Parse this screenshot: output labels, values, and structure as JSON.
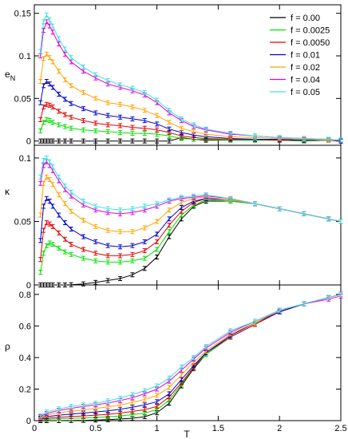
{
  "colors": {
    "f = 0.00": "#000000",
    "f = 0.0025": "#00e000",
    "f = 0.0050": "#e00000",
    "f = 0.01": "#0000d0",
    "f = 0.02": "#ffa500",
    "f = 0.04": "#e000e0",
    "f = 0.05": "#40e0e0"
  },
  "legend": [
    "f = 0.00",
    "f = 0.0025",
    "f = 0.0050",
    "f = 0.01",
    "f = 0.02",
    "f = 0.04",
    "f = 0.05"
  ],
  "chart_data": [
    {
      "type": "line",
      "ylabel": "e_N",
      "xlim": [
        0,
        2.5
      ],
      "ylim": [
        -0.005,
        0.16
      ],
      "yticks": [
        0,
        0.05,
        0.1,
        0.15
      ],
      "ytick_labels": [
        "0",
        "0.05",
        "0.1",
        "0.15"
      ],
      "legend_position": "top-right",
      "x": [
        0.05,
        0.075,
        0.1,
        0.125,
        0.15,
        0.2,
        0.25,
        0.3,
        0.4,
        0.5,
        0.6,
        0.7,
        0.8,
        0.9,
        1.0,
        1.1,
        1.2,
        1.3,
        1.4,
        1.6,
        1.8,
        2.0,
        2.2,
        2.4,
        2.5
      ],
      "series": [
        {
          "name": "f = 0.00",
          "values": [
            0,
            0,
            0,
            0,
            0,
            0,
            0,
            0,
            0,
            0,
            0,
            0,
            0,
            0,
            0,
            0,
            0.004,
            0.002,
            0.001,
            0.001,
            0.001,
            0.001,
            0,
            0.001,
            0
          ]
        },
        {
          "name": "f = 0.0025",
          "values": [
            0.012,
            0.022,
            0.025,
            0.024,
            0.022,
            0.019,
            0.017,
            0.015,
            0.013,
            0.012,
            0.011,
            0.01,
            0.009,
            0.009,
            0.008,
            0.006,
            0.003,
            0.002,
            0.002,
            0.001,
            0.001,
            0.001,
            0,
            0.001,
            0
          ]
        },
        {
          "name": "f = 0.0050",
          "values": [
            0.025,
            0.04,
            0.043,
            0.042,
            0.04,
            0.035,
            0.031,
            0.028,
            0.024,
            0.021,
            0.019,
            0.018,
            0.016,
            0.015,
            0.013,
            0.01,
            0.006,
            0.004,
            0.003,
            0.002,
            0.002,
            0.001,
            0.001,
            0.001,
            0
          ]
        },
        {
          "name": "f = 0.01",
          "values": [
            0.045,
            0.065,
            0.07,
            0.067,
            0.063,
            0.055,
            0.049,
            0.044,
            0.038,
            0.033,
            0.03,
            0.028,
            0.026,
            0.024,
            0.02,
            0.014,
            0.01,
            0.007,
            0.005,
            0.003,
            0.002,
            0.002,
            0.001,
            0.001,
            0
          ]
        },
        {
          "name": "f = 0.02",
          "values": [
            0.07,
            0.097,
            0.102,
            0.098,
            0.093,
            0.082,
            0.072,
            0.065,
            0.057,
            0.05,
            0.045,
            0.043,
            0.04,
            0.036,
            0.03,
            0.022,
            0.015,
            0.011,
            0.008,
            0.005,
            0.004,
            0.003,
            0.002,
            0.001,
            0.001
          ]
        },
        {
          "name": "f = 0.04",
          "values": [
            0.1,
            0.13,
            0.14,
            0.135,
            0.128,
            0.114,
            0.102,
            0.093,
            0.082,
            0.074,
            0.067,
            0.063,
            0.059,
            0.054,
            0.045,
            0.033,
            0.024,
            0.017,
            0.013,
            0.008,
            0.006,
            0.004,
            0.003,
            0.002,
            0.001
          ]
        },
        {
          "name": "f = 0.05",
          "values": [
            0.105,
            0.14,
            0.148,
            0.142,
            0.135,
            0.12,
            0.108,
            0.098,
            0.087,
            0.078,
            0.071,
            0.066,
            0.062,
            0.057,
            0.048,
            0.036,
            0.026,
            0.019,
            0.014,
            0.009,
            0.006,
            0.004,
            0.003,
            0.002,
            0.001
          ]
        }
      ]
    },
    {
      "type": "line",
      "ylabel": "κ",
      "xlim": [
        0,
        2.5
      ],
      "ylim": [
        0,
        0.11
      ],
      "yticks": [
        0,
        0.05,
        0.1
      ],
      "ytick_labels": [
        "0",
        "0.05",
        "0.1"
      ],
      "x": [
        0.05,
        0.075,
        0.1,
        0.125,
        0.15,
        0.2,
        0.25,
        0.3,
        0.4,
        0.5,
        0.6,
        0.7,
        0.8,
        0.9,
        1.0,
        1.1,
        1.2,
        1.3,
        1.4,
        1.6,
        1.8,
        2.0,
        2.2,
        2.4,
        2.5
      ],
      "series": [
        {
          "name": "f = 0.00",
          "values": [
            0,
            0,
            0,
            0,
            0,
            0,
            0,
            0.0002,
            0.0008,
            0.002,
            0.0035,
            0.005,
            0.008,
            0.013,
            0.022,
            0.038,
            0.052,
            0.062,
            0.066,
            0.066,
            0.064,
            0.06,
            0.056,
            0.052,
            0.05
          ]
        },
        {
          "name": "f = 0.0025",
          "values": [
            0.01,
            0.025,
            0.031,
            0.033,
            0.032,
            0.029,
            0.026,
            0.024,
            0.021,
            0.019,
            0.018,
            0.018,
            0.019,
            0.021,
            0.028,
            0.042,
            0.055,
            0.063,
            0.067,
            0.066,
            0.064,
            0.06,
            0.056,
            0.052,
            0.05
          ]
        },
        {
          "name": "f = 0.0050",
          "values": [
            0.02,
            0.043,
            0.049,
            0.048,
            0.046,
            0.041,
            0.036,
            0.032,
            0.028,
            0.025,
            0.023,
            0.023,
            0.024,
            0.027,
            0.034,
            0.047,
            0.058,
            0.065,
            0.068,
            0.067,
            0.064,
            0.06,
            0.056,
            0.052,
            0.05
          ]
        },
        {
          "name": "f = 0.01",
          "values": [
            0.035,
            0.062,
            0.068,
            0.066,
            0.062,
            0.055,
            0.049,
            0.044,
            0.038,
            0.034,
            0.031,
            0.03,
            0.031,
            0.034,
            0.04,
            0.052,
            0.061,
            0.066,
            0.068,
            0.067,
            0.064,
            0.06,
            0.056,
            0.052,
            0.05
          ]
        },
        {
          "name": "f = 0.02",
          "values": [
            0.055,
            0.08,
            0.085,
            0.083,
            0.079,
            0.071,
            0.064,
            0.058,
            0.051,
            0.046,
            0.043,
            0.042,
            0.042,
            0.045,
            0.05,
            0.059,
            0.065,
            0.068,
            0.069,
            0.067,
            0.064,
            0.06,
            0.056,
            0.052,
            0.05
          ]
        },
        {
          "name": "f = 0.04",
          "values": [
            0.08,
            0.094,
            0.097,
            0.094,
            0.09,
            0.082,
            0.075,
            0.07,
            0.063,
            0.059,
            0.057,
            0.056,
            0.057,
            0.059,
            0.062,
            0.066,
            0.068,
            0.069,
            0.07,
            0.068,
            0.064,
            0.06,
            0.056,
            0.052,
            0.05
          ]
        },
        {
          "name": "f = 0.05",
          "values": [
            0.085,
            0.098,
            0.1,
            0.097,
            0.093,
            0.085,
            0.078,
            0.073,
            0.066,
            0.062,
            0.06,
            0.059,
            0.06,
            0.062,
            0.064,
            0.067,
            0.069,
            0.07,
            0.071,
            0.068,
            0.064,
            0.06,
            0.056,
            0.052,
            0.05
          ]
        }
      ]
    },
    {
      "type": "line",
      "ylabel": "ρ",
      "xlabel": "T",
      "xlim": [
        0,
        2.5
      ],
      "ylim": [
        0,
        0.86
      ],
      "xticks": [
        0,
        0.5,
        1,
        1.5,
        2,
        2.5
      ],
      "xtick_labels": [
        "0",
        "0.5",
        "1",
        "1.5",
        "2",
        "2.5"
      ],
      "yticks": [
        0,
        0.2,
        0.4,
        0.6,
        0.8
      ],
      "ytick_labels": [
        "0",
        "0.2",
        "0.4",
        "0.6",
        "0.8"
      ],
      "x": [
        0.05,
        0.1,
        0.2,
        0.3,
        0.4,
        0.5,
        0.6,
        0.7,
        0.8,
        0.9,
        1.0,
        1.1,
        1.2,
        1.3,
        1.4,
        1.6,
        1.8,
        2.0,
        2.2,
        2.4,
        2.5
      ],
      "series": [
        {
          "name": "f = 0.00",
          "values": [
            0,
            0,
            0,
            0.001,
            0.002,
            0.004,
            0.006,
            0.01,
            0.015,
            0.025,
            0.05,
            0.11,
            0.22,
            0.33,
            0.42,
            0.53,
            0.61,
            0.69,
            0.74,
            0.78,
            0.8
          ]
        },
        {
          "name": "f = 0.0025",
          "values": [
            0.005,
            0.008,
            0.012,
            0.015,
            0.017,
            0.02,
            0.025,
            0.03,
            0.038,
            0.048,
            0.07,
            0.13,
            0.23,
            0.34,
            0.42,
            0.53,
            0.61,
            0.69,
            0.74,
            0.78,
            0.8
          ]
        },
        {
          "name": "f = 0.0050",
          "values": [
            0.01,
            0.015,
            0.022,
            0.026,
            0.03,
            0.035,
            0.04,
            0.048,
            0.058,
            0.07,
            0.09,
            0.15,
            0.24,
            0.34,
            0.43,
            0.53,
            0.61,
            0.69,
            0.74,
            0.78,
            0.8
          ]
        },
        {
          "name": "f = 0.01",
          "values": [
            0.015,
            0.025,
            0.035,
            0.042,
            0.048,
            0.055,
            0.062,
            0.072,
            0.085,
            0.1,
            0.12,
            0.17,
            0.26,
            0.35,
            0.43,
            0.54,
            0.62,
            0.69,
            0.74,
            0.78,
            0.8
          ]
        },
        {
          "name": "f = 0.02",
          "values": [
            0.02,
            0.035,
            0.05,
            0.06,
            0.068,
            0.077,
            0.087,
            0.1,
            0.115,
            0.135,
            0.16,
            0.21,
            0.29,
            0.37,
            0.44,
            0.55,
            0.62,
            0.7,
            0.74,
            0.78,
            0.8
          ]
        },
        {
          "name": "f = 0.04",
          "values": [
            0.025,
            0.045,
            0.065,
            0.078,
            0.09,
            0.1,
            0.112,
            0.127,
            0.145,
            0.17,
            0.2,
            0.25,
            0.32,
            0.39,
            0.46,
            0.56,
            0.63,
            0.7,
            0.74,
            0.77,
            0.79
          ]
        },
        {
          "name": "f = 0.05",
          "values": [
            0.03,
            0.055,
            0.075,
            0.09,
            0.1,
            0.11,
            0.125,
            0.142,
            0.165,
            0.19,
            0.22,
            0.27,
            0.34,
            0.4,
            0.47,
            0.57,
            0.63,
            0.7,
            0.74,
            0.78,
            0.8
          ]
        }
      ]
    }
  ]
}
